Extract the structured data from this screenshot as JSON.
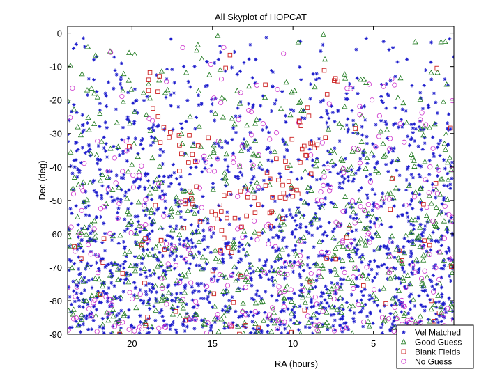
{
  "chart_data": {
    "type": "scatter",
    "title": "All Skyplot of HOPCAT",
    "xlabel": "RA (hours)",
    "ylabel": "Dec (deg)",
    "xlim": [
      24,
      0
    ],
    "ylim": [
      -90,
      2
    ],
    "x_reversed": true,
    "xticks": [
      20,
      15,
      10,
      5
    ],
    "yticks": [
      0,
      -10,
      -20,
      -30,
      -40,
      -50,
      -60,
      -70,
      -80,
      -90
    ],
    "legend_position": "bottom-right",
    "series": [
      {
        "name": "Vel Matched",
        "marker": "star",
        "color": "#1a1acc",
        "count": 1700
      },
      {
        "name": "Good Guess",
        "marker": "triangle",
        "color": "#1f7a1f",
        "count": 650
      },
      {
        "name": "Blank Fields",
        "marker": "square",
        "color": "#cc2020",
        "count": 150
      },
      {
        "name": "No Guess",
        "marker": "circle",
        "color": "#cc33cc",
        "count": 320
      }
    ]
  }
}
